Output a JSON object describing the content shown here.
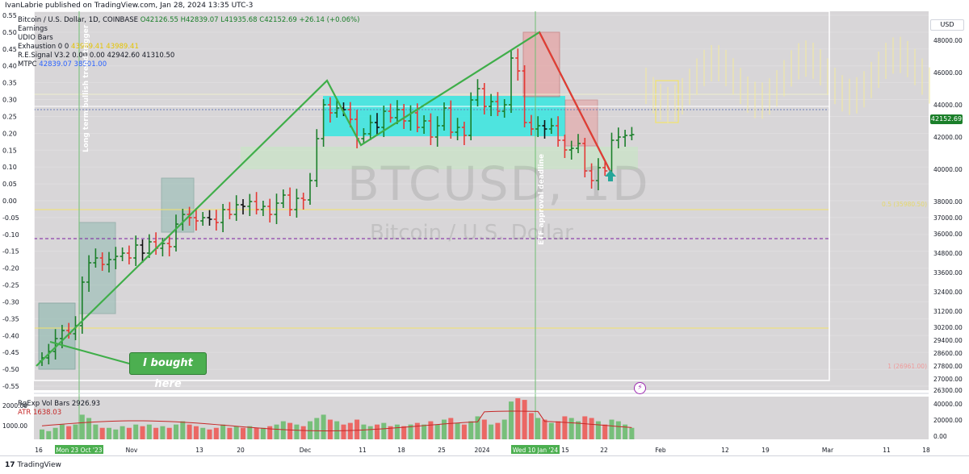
{
  "header": {
    "publisher": "IvanLabrie published on TradingView.com, Jan 28, 2024 13:35 UTC-3"
  },
  "legend": {
    "symbol": "Bitcoin / U.S. Dollar, 1D, COINBASE",
    "ohlc": "O42126.55 H42839.07 L41935.68 C42152.69 +26.14 (+0.06%)",
    "rows": [
      {
        "label": "Earnings",
        "values": ""
      },
      {
        "label": "UDIO Bars",
        "values": ""
      },
      {
        "label": "Exhaustion  0  0",
        "values": "43989.41  43989.41"
      },
      {
        "label": "R.E.Signal V3.2",
        "values": "0.00  0.00  42942.60  41310.50"
      },
      {
        "label": "MTPC",
        "values": "42839.07  38501.00"
      }
    ]
  },
  "volume_legend": {
    "line1": "RgExp Vol Bars  2926.93",
    "line2": "ATR  1638.03"
  },
  "watermark": {
    "symbol": "BTCUSD, 1D",
    "name": "Bitcoin / U.S. Dollar"
  },
  "annotations": {
    "bought": "I bought here",
    "trend_label": "Long term bullish trend trigger",
    "etf_label": "ETF approval deadline",
    "fib_mid": "0.5 (35980.50)",
    "fib_top": "1 (26961.00)",
    "current_price": "42152.69",
    "currency": "USD"
  },
  "footer": {
    "brand": "TradingView",
    "logo": "17"
  },
  "colors": {
    "background": "#d8d6d8",
    "up": "#1b7f2a",
    "down": "#e53935",
    "trendline": "#3fae49",
    "cyan_box": "#3fe6e0",
    "accent": "#2962ff"
  },
  "chart_data": {
    "type": "candlestick",
    "title": "Bitcoin / U.S. Dollar, 1D, COINBASE",
    "x_ticks": [
      "16",
      "Mon 23 Oct '23",
      "Nov",
      "13",
      "20",
      "Dec",
      "11",
      "18",
      "25",
      "2024",
      "Wed 10 Jan '24",
      "15",
      "22",
      "Feb",
      "12",
      "19",
      "Mar",
      "11",
      "18"
    ],
    "left_axis_ticks": [
      "0.55",
      "0.50",
      "0.45",
      "0.40",
      "0.35",
      "0.30",
      "0.25",
      "0.20",
      "0.15",
      "0.10",
      "0.05",
      "0.00",
      "-0.05",
      "-0.10",
      "-0.15",
      "-0.20",
      "-0.25",
      "-0.30",
      "-0.35",
      "-0.40",
      "-0.45",
      "-0.50",
      "-0.55"
    ],
    "right_axis_ticks": [
      "48000.00",
      "46000.00",
      "44000.00",
      "42000.00",
      "40000.00",
      "38000.00",
      "37000.00",
      "36000.00",
      "34800.00",
      "33600.00",
      "32400.00",
      "31200.00",
      "30200.00",
      "29400.00",
      "28600.00",
      "27800.00",
      "27000.00",
      "26300.00"
    ],
    "volume_axis_ticks": [
      "2000.00",
      "1000.00"
    ],
    "volume_right_ticks": [
      "40000.00",
      "20000.00",
      "0.00"
    ],
    "closes": [
      28300,
      28700,
      29500,
      30000,
      29800,
      30300,
      33000,
      34200,
      34500,
      34100,
      34400,
      34600,
      34800,
      34500,
      35300,
      34800,
      35500,
      35100,
      35400,
      35200,
      36600,
      37200,
      37000,
      36800,
      37000,
      36900,
      36700,
      37500,
      37200,
      37800,
      37700,
      38000,
      37500,
      37700,
      37200,
      37900,
      38400,
      37500,
      38200,
      38100,
      39300,
      41900,
      44000,
      43500,
      43800,
      43700,
      43100,
      41900,
      42200,
      42900,
      42600,
      43600,
      43200,
      43700,
      43000,
      43500,
      42600,
      43000,
      42000,
      42700,
      43800,
      42300,
      42600,
      42100,
      44300,
      45000,
      43900,
      44200,
      43600,
      44000,
      46900,
      46100,
      42900,
      42500,
      42700,
      42500,
      42700,
      41800,
      41200,
      41300,
      41600,
      39900,
      39300,
      40100,
      39900,
      41800,
      42000,
      42100,
      42152.69
    ],
    "volume": [
      600,
      500,
      700,
      900,
      800,
      900,
      1500,
      1300,
      900,
      700,
      700,
      600,
      800,
      700,
      900,
      800,
      900,
      700,
      800,
      700,
      900,
      1100,
      900,
      800,
      700,
      600,
      700,
      900,
      700,
      800,
      700,
      800,
      700,
      700,
      800,
      900,
      1100,
      1000,
      900,
      800,
      1100,
      1300,
      1500,
      1200,
      1100,
      900,
      1000,
      1200,
      900,
      800,
      900,
      1000,
      800,
      900,
      800,
      900,
      1000,
      900,
      1100,
      900,
      1200,
      1300,
      1000,
      900,
      1100,
      1400,
      1200,
      900,
      1000,
      1200,
      2300,
      2500,
      2400,
      1600,
      1300,
      1200,
      1000,
      1100,
      1400,
      1300,
      1100,
      1400,
      1300,
      1100,
      900,
      1200,
      1100,
      900,
      700
    ],
    "yrange": [
      26300,
      49800
    ],
    "fib_levels": [
      {
        "label": "0.5 (35980.50)",
        "value": 35980.5
      },
      {
        "label": "1 (26961.00)",
        "value": 26961
      }
    ],
    "grid": true,
    "legend_position": "top-left"
  }
}
